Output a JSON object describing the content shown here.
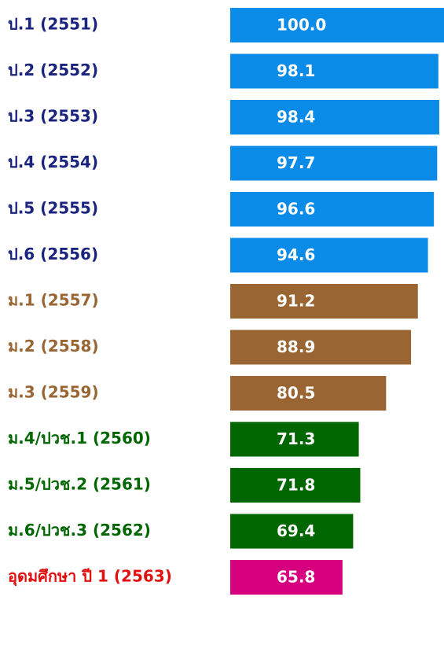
{
  "chart_data": {
    "type": "barh",
    "categories": [
      "ป.1 (2551)",
      "ป.2 (2552)",
      "ป.3 (2553)",
      "ป.4 (2554)",
      "ป.5 (2555)",
      "ป.6 (2556)",
      "ม.1 (2557)",
      "ม.2 (2558)",
      "ม.3 (2559)",
      "ม.4/ปวช.1 (2560)",
      "ม.5/ปวช.2 (2561)",
      "ม.6/ปวช.3 (2562)",
      "อุดมศึกษา ปี 1 (2563)"
    ],
    "values": [
      100.0,
      98.1,
      98.4,
      97.7,
      96.6,
      94.6,
      91.2,
      88.9,
      80.5,
      71.3,
      71.8,
      69.4,
      65.8
    ],
    "value_labels": [
      "100.0",
      "98.1",
      "98.4",
      "97.7",
      "96.6",
      "94.6",
      "91.2",
      "88.9",
      "80.5",
      "71.3",
      "71.8",
      "69.4",
      "65.8"
    ],
    "colors": [
      "#0a8be8",
      "#0a8be8",
      "#0a8be8",
      "#0a8be8",
      "#0a8be8",
      "#0a8be8",
      "#996633",
      "#996633",
      "#996633",
      "#006600",
      "#006600",
      "#006600",
      "#d6007f"
    ],
    "label_colors": [
      "#1a237e",
      "#1a237e",
      "#1a237e",
      "#1a237e",
      "#1a237e",
      "#1a237e",
      "#996633",
      "#996633",
      "#996633",
      "#006600",
      "#006600",
      "#006600",
      "#e01010"
    ],
    "xlim": [
      28,
      100
    ]
  }
}
